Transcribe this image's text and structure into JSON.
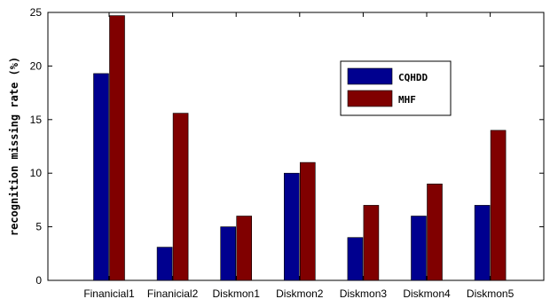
{
  "chart_data": {
    "type": "bar",
    "categories": [
      "Finanicial1",
      "Finanicial2",
      "Diskmon1",
      "Diskmon2",
      "Diskmon3",
      "Diskmon4",
      "Diskmon5"
    ],
    "series": [
      {
        "name": "CQHDD",
        "color": "#00008f",
        "values": [
          19.3,
          3.1,
          5.0,
          10.0,
          4.0,
          6.0,
          7.0
        ]
      },
      {
        "name": "MHF",
        "color": "#800000",
        "values": [
          24.7,
          15.6,
          6.0,
          11.0,
          7.0,
          9.0,
          14.0
        ]
      }
    ],
    "title": "",
    "xlabel": "",
    "ylabel": "recognition missing rate (%)",
    "ylim": [
      0,
      25
    ],
    "yticks": [
      0,
      5,
      10,
      15,
      20,
      25
    ],
    "grid": false,
    "legend_position": "top-right"
  }
}
